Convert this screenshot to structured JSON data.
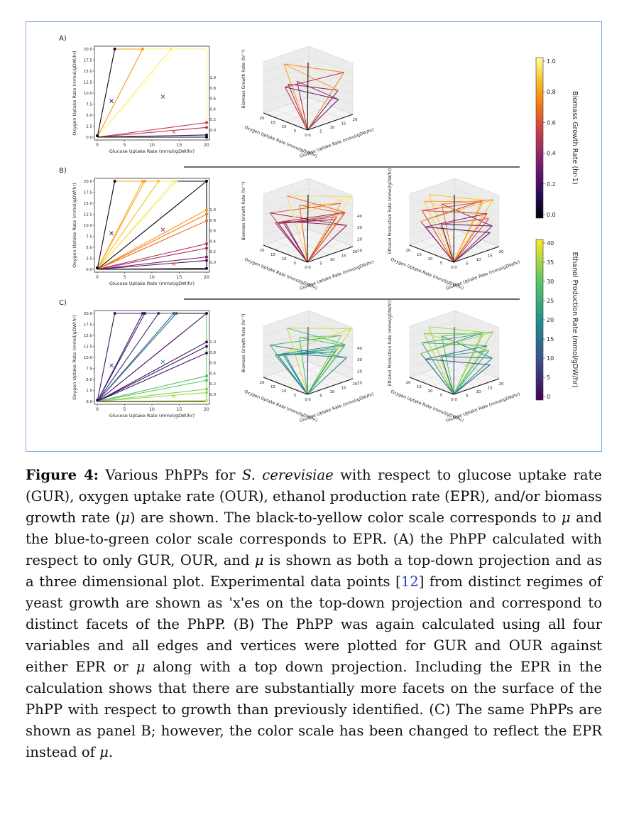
{
  "figure": {
    "panel_labels": [
      "A)",
      "B)",
      "C)"
    ],
    "proj_xlabel": "Glucose Uptake Rate (mmol/gDW/hr)",
    "proj_ylabel": "Oxygen Uptake Rate (mmol/gDW/hr)",
    "proj_xticks": [
      "0",
      "5",
      "10",
      "15",
      "20"
    ],
    "proj_yticks": [
      "0.0",
      "2.5",
      "5.0",
      "7.5",
      "10.0",
      "12.5",
      "15.0",
      "17.5",
      "20.0"
    ],
    "d3_mu_zlabel": "Biomass Growth Rate (hr⁻¹)",
    "d3_mu_zticks": [
      "0.0",
      "0.2",
      "0.4",
      "0.6",
      "0.8",
      "1.0"
    ],
    "d3_epr_zlabel": "Ethanol Production Rate (mmol/gDW/hr)",
    "d3_epr_zticks": [
      "10",
      "20",
      "30",
      "40"
    ],
    "d3_xlabel": "Oxygen Uptake Rate (mmol/gDW/hr)",
    "d3_ylabel": "Glucose Uptake Rate (mmol/gDW/hr)",
    "d3_oticks": [
      "20",
      "15",
      "10",
      "5",
      "0"
    ],
    "d3_gticks": [
      "0",
      "5",
      "10",
      "15",
      "20"
    ],
    "colorbar_mu": {
      "label": "Biomass Growth Rate (hr-1)",
      "ticks": [
        "0.0",
        "0.2",
        "0.4",
        "0.6",
        "0.8",
        "1.0"
      ]
    },
    "colorbar_epr": {
      "label": "Ethanol Production Rate (mmol/gDW/hr)",
      "ticks": [
        "0",
        "5",
        "10",
        "15",
        "20",
        "25",
        "30",
        "35",
        "40"
      ]
    }
  },
  "chart_data": [
    {
      "panel": "A",
      "type": "scatter",
      "xlabel": "Glucose Uptake Rate (mmol/gDW/hr)",
      "ylabel": "Oxygen Uptake Rate (mmol/gDW/hr)",
      "xlim": [
        0,
        20
      ],
      "ylim": [
        0,
        20
      ],
      "color_by": "Biomass Growth Rate",
      "vertices": [
        {
          "x": 0,
          "y": 0.3,
          "c": 0.0
        },
        {
          "x": 3.2,
          "y": 20,
          "c": 0.05
        },
        {
          "x": 8.3,
          "y": 20,
          "c": 0.8
        },
        {
          "x": 13.5,
          "y": 20,
          "c": 1.0
        },
        {
          "x": 14.3,
          "y": 20,
          "c": 1.05
        },
        {
          "x": 20,
          "y": 3.3,
          "c": 0.55
        },
        {
          "x": 20,
          "y": 2.2,
          "c": 0.5
        },
        {
          "x": 20,
          "y": 0.5,
          "c": 0.15
        },
        {
          "x": 20,
          "y": 0,
          "c": 0.0
        }
      ],
      "experimental_points": [
        {
          "x": 2.6,
          "y": 8.2
        },
        {
          "x": 12.0,
          "y": 9.2
        },
        {
          "x": 14.0,
          "y": 1.2
        }
      ]
    },
    {
      "panel": "B",
      "type": "scatter",
      "xlabel": "Glucose Uptake Rate (mmol/gDW/hr)",
      "ylabel": "Oxygen Uptake Rate (mmol/gDW/hr)",
      "xlim": [
        0,
        20
      ],
      "ylim": [
        0,
        20
      ],
      "color_by": "Biomass Growth Rate",
      "vertices": [
        {
          "x": 3.2,
          "y": 20,
          "c": 0.05
        },
        {
          "x": 8.3,
          "y": 20,
          "c": 0.85
        },
        {
          "x": 8.7,
          "y": 20,
          "c": 0.85
        },
        {
          "x": 11.2,
          "y": 20,
          "c": 0.9
        },
        {
          "x": 14.0,
          "y": 20,
          "c": 1.0
        },
        {
          "x": 14.5,
          "y": 20,
          "c": 1.0
        },
        {
          "x": 20,
          "y": 20,
          "c": 0.0
        },
        {
          "x": 20,
          "y": 13.5,
          "c": 0.8
        },
        {
          "x": 20,
          "y": 12.5,
          "c": 0.75
        },
        {
          "x": 20,
          "y": 11.0,
          "c": 0.7
        },
        {
          "x": 20,
          "y": 5.8,
          "c": 0.5
        },
        {
          "x": 20,
          "y": 4.8,
          "c": 0.45
        },
        {
          "x": 20,
          "y": 2.8,
          "c": 0.35
        },
        {
          "x": 20,
          "y": 2.0,
          "c": 0.25
        },
        {
          "x": 20,
          "y": 0.2,
          "c": 0.05
        },
        {
          "x": 0,
          "y": 0.3,
          "c": 0.0
        }
      ],
      "experimental_points": [
        {
          "x": 2.6,
          "y": 8.2
        },
        {
          "x": 12.0,
          "y": 9.0
        },
        {
          "x": 14.0,
          "y": 1.2
        }
      ]
    },
    {
      "panel": "C",
      "type": "scatter",
      "xlabel": "Glucose Uptake Rate (mmol/gDW/hr)",
      "ylabel": "Oxygen Uptake Rate (mmol/gDW/hr)",
      "xlim": [
        0,
        20
      ],
      "ylim": [
        0,
        20
      ],
      "color_by": "Ethanol Production Rate",
      "vertices": [
        {
          "x": 3.2,
          "y": 20,
          "c": 2
        },
        {
          "x": 8.3,
          "y": 20,
          "c": 3
        },
        {
          "x": 8.7,
          "y": 20,
          "c": 4
        },
        {
          "x": 11.2,
          "y": 20,
          "c": 6
        },
        {
          "x": 14.0,
          "y": 20,
          "c": 12
        },
        {
          "x": 14.5,
          "y": 20,
          "c": 14
        },
        {
          "x": 20,
          "y": 20,
          "c": 0
        },
        {
          "x": 20,
          "y": 13.5,
          "c": 2
        },
        {
          "x": 20,
          "y": 12.5,
          "c": 3
        },
        {
          "x": 20,
          "y": 11.0,
          "c": 3
        },
        {
          "x": 20,
          "y": 5.8,
          "c": 28
        },
        {
          "x": 20,
          "y": 4.8,
          "c": 30
        },
        {
          "x": 20,
          "y": 2.8,
          "c": 32
        },
        {
          "x": 20,
          "y": 2.0,
          "c": 34
        },
        {
          "x": 20,
          "y": 0.2,
          "c": 38
        },
        {
          "x": 0,
          "y": 0.3,
          "c": 0
        }
      ],
      "experimental_points": [
        {
          "x": 2.6,
          "y": 8.2
        },
        {
          "x": 12.0,
          "y": 9.0
        },
        {
          "x": 14.0,
          "y": 1.2
        }
      ]
    }
  ],
  "caption": {
    "label": "Figure 4:",
    "p1": " Various PhPPs for ",
    "species": "S. cerevisiae",
    "p2": " with respect to glucose uptake rate (GUR), oxygen uptake rate (OUR), ethanol production rate (EPR), and/or biomass growth rate (",
    "mu": "μ",
    "p3": ") are shown. The black-to-yellow color scale corresponds to ",
    "p4": " and the blue-to-green color scale corresponds to EPR. (A) the PhPP calculated with respect to only GUR, OUR, and ",
    "p5": " is shown as both a top-down projection and as a three dimensional plot. Experimental data points [",
    "ref": "12",
    "p6": "] from distinct regimes of yeast growth are shown as 'x'es on the top-down projection and correspond to distinct facets of the PhPP. (B) The PhPP was again calculated using all four variables and all edges and vertices were plotted for GUR and OUR against either EPR or ",
    "p7": " along with a top down projection. Including the EPR in the calculation shows that there are substantially more facets on the surface of the PhPP with respect to growth than previously identified. (C) The same PhPPs are shown as panel B; however, the color scale has been changed to reflect the EPR instead of ",
    "p8": "."
  }
}
